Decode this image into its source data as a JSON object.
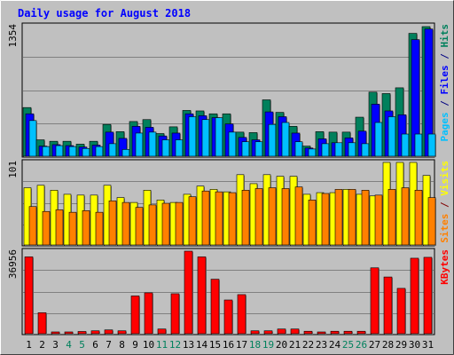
{
  "chart_data": {
    "type": "bar",
    "title": "Daily usage for August 2018",
    "categories": [
      "1",
      "2",
      "3",
      "4",
      "5",
      "6",
      "7",
      "8",
      "9",
      "10",
      "11",
      "12",
      "13",
      "14",
      "15",
      "16",
      "17",
      "18",
      "19",
      "20",
      "21",
      "22",
      "23",
      "24",
      "25",
      "26",
      "27",
      "28",
      "29",
      "30",
      "31"
    ],
    "weekend_days": [
      "4",
      "5",
      "11",
      "12",
      "18",
      "19",
      "25",
      "26"
    ],
    "panels": [
      {
        "id": "hits-panel",
        "ymax": 1354,
        "ymax_label": "1354",
        "right_labels": [
          {
            "text": "Pages",
            "color": "#00c0ff"
          },
          {
            "text": " / ",
            "color": "#000080"
          },
          {
            "text": "Files",
            "color": "#0000ff"
          },
          {
            "text": " / ",
            "color": "#000080"
          },
          {
            "text": "Hits",
            "color": "#00805c"
          }
        ],
        "series": [
          {
            "name": "Hits",
            "color": "#00805c",
            "values": [
              505,
              170,
              155,
              155,
              125,
              155,
              330,
              255,
              360,
              380,
              235,
              305,
              475,
              470,
              440,
              440,
              250,
              245,
              585,
              455,
              310,
              105,
              255,
              250,
              250,
              405,
              665,
              650,
              710,
              1275,
              1345
            ]
          },
          {
            "name": "Files",
            "color": "#0000ff",
            "values": [
              440,
              105,
              120,
              110,
              95,
              115,
              250,
              185,
              310,
              300,
              210,
              240,
              440,
              420,
              400,
              335,
              195,
              170,
              460,
              410,
              240,
              85,
              180,
              140,
              190,
              260,
              540,
              470,
              430,
              1210,
              1320
            ]
          },
          {
            "name": "Pages",
            "color": "#00c0ff",
            "values": [
              370,
              100,
              110,
              100,
              80,
              100,
              130,
              70,
              240,
              250,
              170,
              170,
              410,
              380,
              400,
              250,
              150,
              150,
              330,
              350,
              150,
              75,
              130,
              140,
              140,
              130,
              350,
              410,
              230,
              230,
              230
            ]
          }
        ]
      },
      {
        "id": "visits-panel",
        "ymax": 101,
        "ymax_label": "101",
        "right_labels": [
          {
            "text": "Sites",
            "color": "#ff8000"
          },
          {
            "text": " / ",
            "color": "#800000"
          },
          {
            "text": "Visits",
            "color": "#ffff00"
          }
        ],
        "series": [
          {
            "name": "Visits",
            "color": "#ffff00",
            "values": [
              70,
              73,
              67,
              62,
              61,
              61,
              73,
              58,
              52,
              67,
              55,
              52,
              62,
              72,
              68,
              65,
              86,
              75,
              86,
              84,
              84,
              62,
              64,
              64,
              68,
              62,
              60,
              101,
              101,
              101,
              85
            ]
          },
          {
            "name": "Sites",
            "color": "#ff8000",
            "values": [
              47,
              41,
              43,
              40,
              42,
              40,
              54,
              52,
              46,
              49,
              51,
              52,
              59,
              66,
              65,
              64,
              67,
              69,
              70,
              69,
              71,
              55,
              63,
              68,
              68,
              67,
              61,
              68,
              70,
              67,
              58
            ]
          }
        ]
      },
      {
        "id": "kbytes-panel",
        "ymax": 36956,
        "ymax_label": "36956",
        "right_labels": [
          {
            "text": "KBytes",
            "color": "#ff0000"
          }
        ],
        "series": [
          {
            "name": "KBytes",
            "color": "#ff0000",
            "values": [
              34400,
              9400,
              800,
              800,
              1000,
              1300,
              1700,
              1300,
              16900,
              18300,
              2100,
              17900,
              36956,
              34400,
              24400,
              15100,
              17500,
              1300,
              1300,
              2100,
              2100,
              1100,
              700,
              1100,
              1100,
              1100,
              29500,
              25400,
              20300,
              33800,
              34200
            ]
          }
        ]
      }
    ]
  }
}
